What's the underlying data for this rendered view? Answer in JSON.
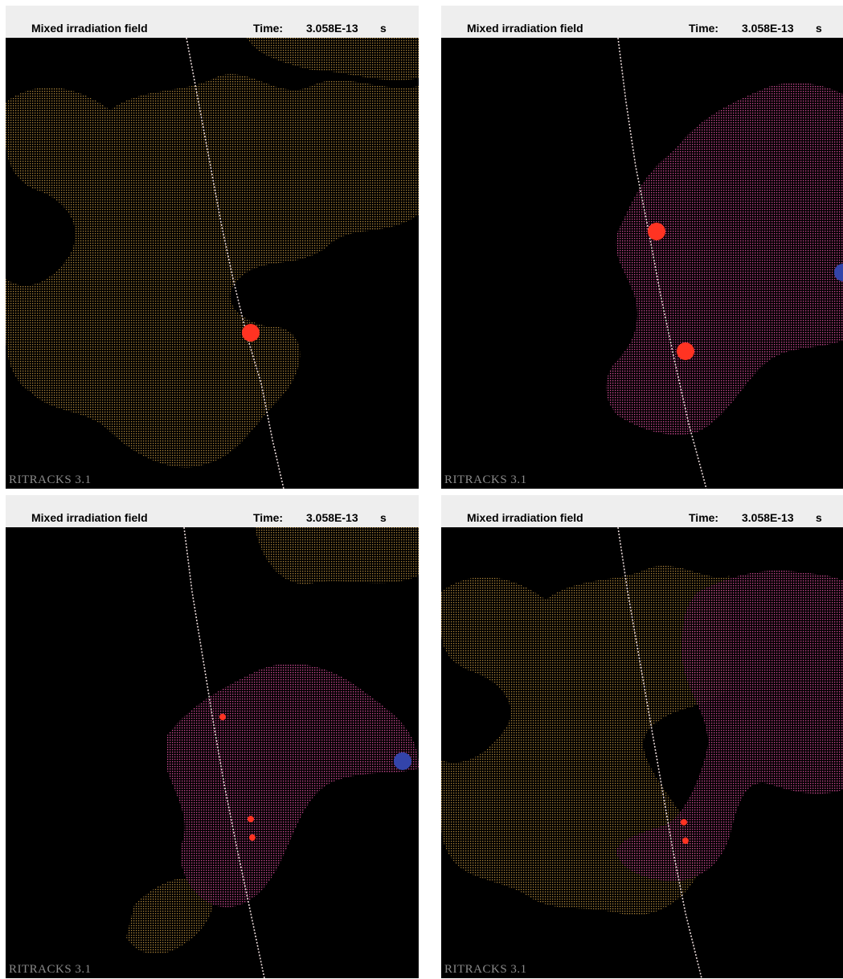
{
  "panels": [
    {
      "title": "Mixed irradiation field",
      "time_label": "Time:",
      "time_value": "3.058E-13",
      "time_unit": "s",
      "watermark": "RITRACKS 3.1",
      "clouds": [
        "tan"
      ],
      "particles": [
        {
          "color": "red",
          "size": "large"
        }
      ]
    },
    {
      "title": "Mixed irradiation field",
      "time_label": "Time:",
      "time_value": "3.058E-13",
      "time_unit": "s",
      "watermark": "RITRACKS 3.1",
      "clouds": [
        "magenta"
      ],
      "particles": [
        {
          "color": "red",
          "size": "large"
        },
        {
          "color": "red",
          "size": "large"
        },
        {
          "color": "blue",
          "size": "large"
        }
      ]
    },
    {
      "title": "Mixed irradiation field",
      "time_label": "Time:",
      "time_value": "3.058E-13",
      "time_unit": "s",
      "watermark": "RITRACKS 3.1",
      "clouds": [
        "tan",
        "magenta"
      ],
      "particles": [
        {
          "color": "red",
          "size": "small"
        },
        {
          "color": "red",
          "size": "small"
        },
        {
          "color": "red",
          "size": "small"
        },
        {
          "color": "blue",
          "size": "large"
        }
      ]
    },
    {
      "title": "Mixed irradiation field",
      "time_label": "Time:",
      "time_value": "3.058E-13",
      "time_unit": "s",
      "watermark": "RITRACKS 3.1",
      "clouds": [
        "tan",
        "magenta"
      ],
      "particles": [
        {
          "color": "red",
          "size": "small"
        },
        {
          "color": "red",
          "size": "small"
        }
      ]
    }
  ],
  "colors": {
    "tan_cloud": "#b58a3c",
    "magenta_cloud": "#c8448f",
    "track": "#e8d8d8",
    "red_particle": "#ff3322",
    "blue_particle": "#3344aa"
  }
}
